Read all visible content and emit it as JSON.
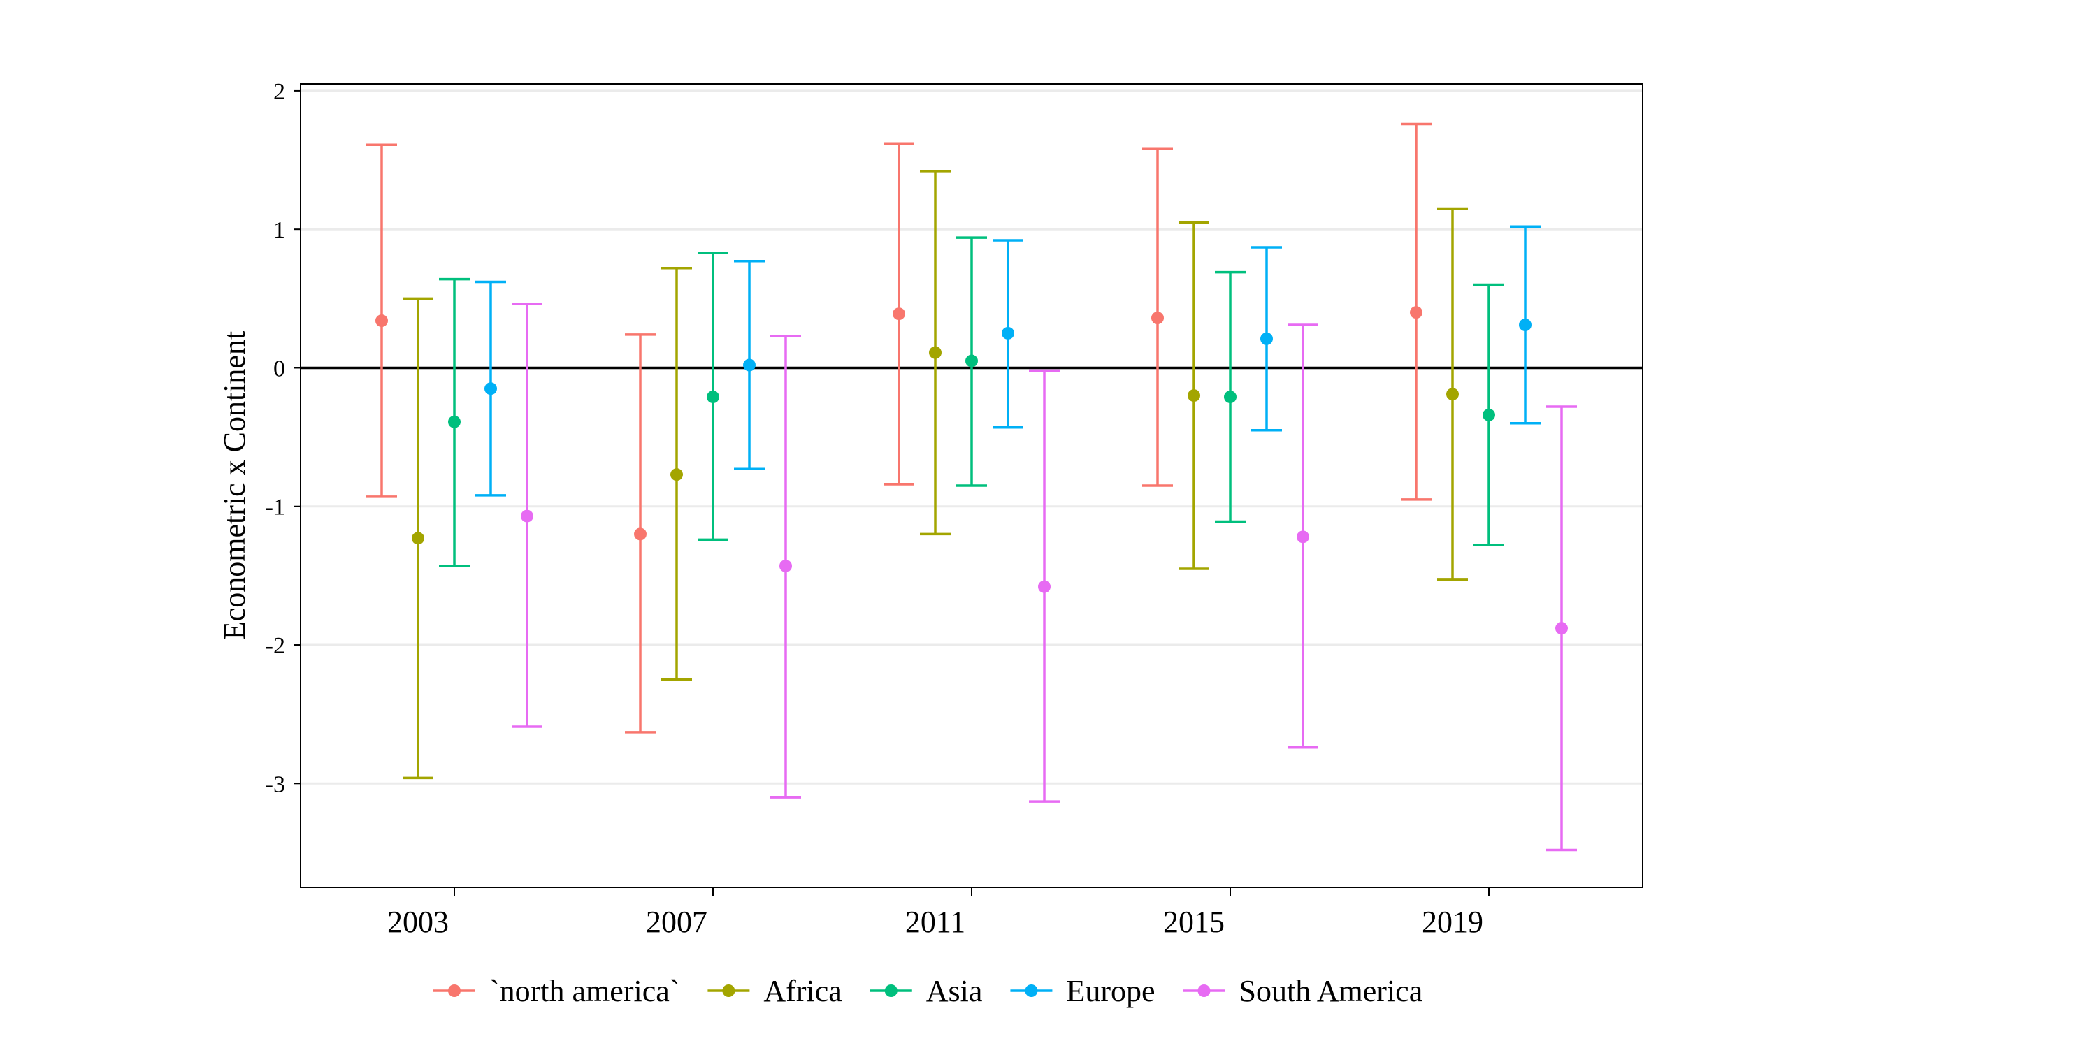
{
  "chart_data": {
    "type": "scatter",
    "subtype": "point-with-errorbars",
    "title": "",
    "xlabel": "",
    "ylabel": "Econometric x Continent",
    "categories": [
      "2003",
      "2007",
      "2011",
      "2015",
      "2019"
    ],
    "ylim": [
      -3.75,
      2.05
    ],
    "yticks": [
      2,
      1,
      0,
      -1,
      -2,
      -3
    ],
    "ytick_labels": [
      "2",
      "1",
      "0",
      "-1",
      "-2",
      "-3"
    ],
    "grid": true,
    "reference_line": 0,
    "legend_position": "bottom",
    "series": [
      {
        "name": "`north america`",
        "color": "#F8766D",
        "values": [
          0.34,
          -1.2,
          0.39,
          0.36,
          0.4
        ],
        "lower": [
          -0.93,
          -2.63,
          -0.84,
          -0.85,
          -0.95
        ],
        "upper": [
          1.61,
          0.24,
          1.62,
          1.58,
          1.76
        ]
      },
      {
        "name": "Africa",
        "color": "#A3A500",
        "values": [
          -1.23,
          -0.77,
          0.11,
          -0.2,
          -0.19
        ],
        "lower": [
          -2.96,
          -2.25,
          -1.2,
          -1.45,
          -1.53
        ],
        "upper": [
          0.5,
          0.72,
          1.42,
          1.05,
          1.15
        ]
      },
      {
        "name": "Asia",
        "color": "#00BF7D",
        "values": [
          -0.39,
          -0.21,
          0.05,
          -0.21,
          -0.34
        ],
        "lower": [
          -1.43,
          -1.24,
          -0.85,
          -1.11,
          -1.28
        ],
        "upper": [
          0.64,
          0.83,
          0.94,
          0.69,
          0.6
        ]
      },
      {
        "name": "Europe",
        "color": "#00B0F6",
        "values": [
          -0.15,
          0.02,
          0.25,
          0.21,
          0.31
        ],
        "lower": [
          -0.92,
          -0.73,
          -0.43,
          -0.45,
          -0.4
        ],
        "upper": [
          0.62,
          0.77,
          0.92,
          0.87,
          1.02
        ]
      },
      {
        "name": "South America",
        "color": "#E76BF3",
        "values": [
          -1.07,
          -1.43,
          -1.58,
          -1.22,
          -1.88
        ],
        "lower": [
          -2.59,
          -3.1,
          -3.13,
          -2.74,
          -3.48
        ],
        "upper": [
          0.46,
          0.23,
          -0.02,
          0.31,
          -0.28
        ]
      }
    ]
  }
}
